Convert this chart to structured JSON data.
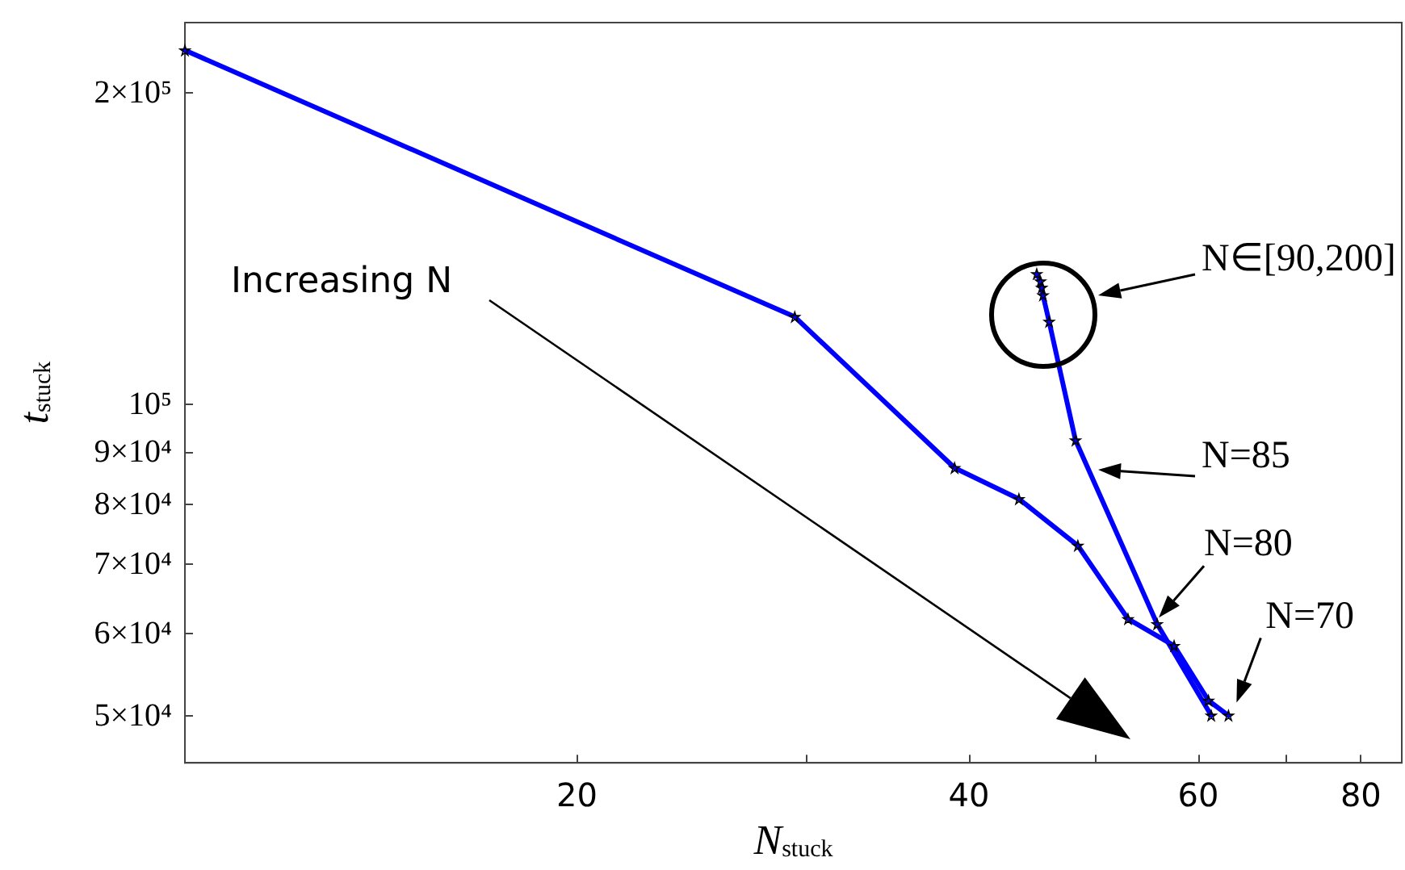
{
  "chart_data": {
    "type": "line",
    "xlabel": "N$_{stuck}$",
    "ylabel": "t$_{stuck}$",
    "log": "xy",
    "marker": "star",
    "line_style": "solid",
    "xlim": [
      10,
      86
    ],
    "ylim": [
      45000,
      234000
    ],
    "xticks": [
      20,
      {
        "value": 30,
        "label": null
      },
      40,
      {
        "value": 50,
        "label": null
      },
      60,
      {
        "value": 70,
        "label": null
      },
      80
    ],
    "yticks": [
      {
        "value": 50000,
        "label": "5×10⁴"
      },
      {
        "value": 60000,
        "label": "6×10⁴"
      },
      {
        "value": 70000,
        "label": "7×10⁴"
      },
      {
        "value": 80000,
        "label": "8×10⁴"
      },
      {
        "value": 90000,
        "label": "9×10⁴"
      },
      {
        "value": 100000,
        "label": "10⁵"
      },
      {
        "value": 200000,
        "label": "2×10⁵"
      }
    ],
    "series": [
      {
        "color": "#0000ff",
        "x": [
          10,
          29.4,
          39.0,
          43.7,
          48.5,
          53.0,
          57.5,
          61.1,
          63.3
        ],
        "values": [
          220000,
          121500,
          86800,
          81000,
          73000,
          62000,
          58400,
          51700,
          50000
        ]
      },
      {
        "color": "#0000ff",
        "x": [
          45.1,
          45.4,
          45.5,
          45.6,
          46.1,
          48.3,
          55.8,
          61.4
        ],
        "values": [
          133700,
          131500,
          129700,
          127500,
          120200,
          92300,
          61300,
          50000
        ]
      }
    ],
    "annotations": [
      "Increasing N",
      "N∈[90,200]",
      "N=85",
      {
        "text": "N=80",
        "x": 55.8,
        "y": 61300
      },
      {
        "text": "N=70",
        "x": 63.3,
        "y": 50000
      }
    ]
  }
}
